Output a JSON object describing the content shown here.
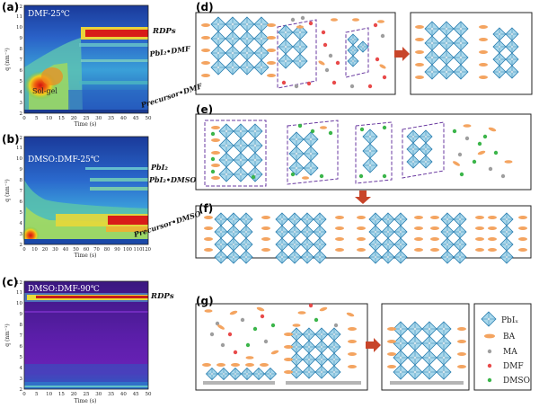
{
  "panels": {
    "a": {
      "label": "(a)",
      "condition": "DMF-25℃",
      "annotations": [
        "RDPs",
        "PbI₂•DMF",
        "Precursor•DMF",
        "Sol-gel"
      ],
      "yticks": [
        "2",
        "3",
        "4",
        "5",
        "6",
        "7",
        "8",
        "9",
        "10",
        "11",
        "12"
      ],
      "xticks": [
        "0",
        "5",
        "10",
        "15",
        "20",
        "25",
        "30",
        "35",
        "40",
        "45",
        "50"
      ],
      "ylabel": "q (nm⁻¹)",
      "xlabel": "Time (s)"
    },
    "b": {
      "label": "(b)",
      "condition": "DMSO:DMF-25℃",
      "annotations": [
        "PbI₂",
        "PbI₂•DMSO",
        "Precursor•DMSO"
      ],
      "yticks": [
        "2",
        "3",
        "4",
        "5",
        "6",
        "7",
        "8",
        "9",
        "10",
        "11",
        "12"
      ],
      "xticks": [
        "0",
        "10",
        "20",
        "30",
        "40",
        "50",
        "60",
        "70",
        "80",
        "90",
        "100",
        "110",
        "120"
      ],
      "ylabel": "q (nm⁻¹)",
      "xlabel": "Time (s)"
    },
    "c": {
      "label": "(c)",
      "condition": "DMSO:DMF-90℃",
      "annotations": [
        "RDPs"
      ],
      "yticks": [
        "2",
        "3",
        "4",
        "5",
        "6",
        "7",
        "8",
        "9",
        "10",
        "11",
        "12"
      ],
      "xticks": [
        "0",
        "5",
        "10",
        "15",
        "20",
        "25",
        "30",
        "35",
        "40",
        "45",
        "50"
      ],
      "ylabel": "q (nm⁻¹)",
      "xlabel": "Time (s)"
    },
    "d": {
      "label": "(d)"
    },
    "e": {
      "label": "(e)"
    },
    "f": {
      "label": "(f)"
    },
    "g": {
      "label": "(g)"
    }
  },
  "legend": [
    {
      "symbol": "octahedron",
      "text": "PbIₓ"
    },
    {
      "symbol": "ellipse",
      "text": "BA",
      "color": "#f4a460"
    },
    {
      "symbol": "dot",
      "text": "MA",
      "color": "#9e9e9e"
    },
    {
      "symbol": "dot",
      "text": "DMF",
      "color": "#e84a4a"
    },
    {
      "symbol": "dot",
      "text": "DMSO",
      "color": "#3bb54a"
    }
  ],
  "colors": {
    "octa_fill": "#a9d8ec",
    "octa_stroke": "#2a7fb0",
    "ba": "#f4a460",
    "arrow": "#c8452a",
    "dash": "#6a3aa0",
    "substrate": "#b5b5b5"
  }
}
